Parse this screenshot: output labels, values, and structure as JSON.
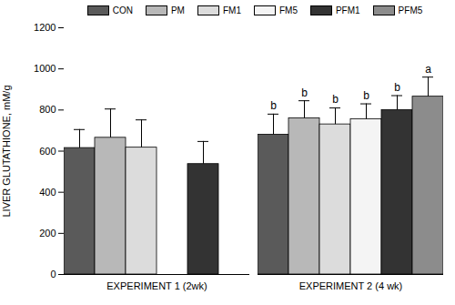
{
  "chart_data": {
    "type": "bar",
    "y_label": "LIVER GLUTATHIONE, mM/g",
    "categories": [
      "EXPERIMENT 1 (2wk)",
      "EXPERIMENT 2 (4 wk)"
    ],
    "series": [
      {
        "name": "CON",
        "color": "#5a5a5a",
        "values": [
          615,
          680
        ],
        "errors": [
          90,
          100
        ],
        "significance": [
          null,
          "b"
        ]
      },
      {
        "name": "PM",
        "color": "#b8b8b8",
        "values": [
          665,
          760
        ],
        "errors": [
          140,
          85
        ],
        "significance": [
          null,
          "b"
        ]
      },
      {
        "name": "FM1",
        "color": "#dcdcdc",
        "values": [
          617,
          730
        ],
        "errors": [
          135,
          80
        ],
        "significance": [
          null,
          "b"
        ]
      },
      {
        "name": "FM5",
        "color": "#f4f4f4",
        "values": [
          null,
          755
        ],
        "errors": [
          null,
          75
        ],
        "significance": [
          null,
          "b"
        ]
      },
      {
        "name": "PFM1",
        "color": "#333333",
        "values": [
          537,
          800
        ],
        "errors": [
          110,
          70
        ],
        "significance": [
          null,
          "b"
        ]
      },
      {
        "name": "PFM5",
        "color": "#8c8c8c",
        "values": [
          null,
          865
        ],
        "errors": [
          null,
          95
        ],
        "significance": [
          null,
          "a"
        ]
      }
    ],
    "ylim": [
      0,
      1200
    ],
    "yticks": [
      0,
      200,
      400,
      600,
      800,
      1000,
      1200
    ],
    "legend": "top",
    "grid": false
  }
}
